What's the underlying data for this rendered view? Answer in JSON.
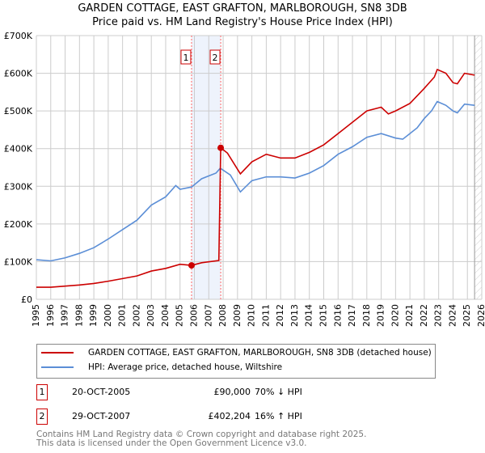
{
  "title": "GARDEN COTTAGE, EAST GRAFTON, MARLBOROUGH, SN8 3DB",
  "subtitle": "Price paid vs. HM Land Registry's House Price Index (HPI)",
  "chart_data": {
    "type": "line",
    "title": "GARDEN COTTAGE, EAST GRAFTON, MARLBOROUGH, SN8 3DB",
    "ylim": [
      0,
      700000
    ],
    "xlim": [
      1995,
      2026
    ],
    "yticks": [
      0,
      100000,
      200000,
      300000,
      400000,
      500000,
      600000,
      700000
    ],
    "ytick_labels": [
      "£0",
      "£100K",
      "£200K",
      "£300K",
      "£400K",
      "£500K",
      "£600K",
      "£700K"
    ],
    "xticks": [
      "1995",
      "1996",
      "1997",
      "1998",
      "1999",
      "2000",
      "2001",
      "2002",
      "2003",
      "2004",
      "2005",
      "2006",
      "2007",
      "2008",
      "2009",
      "2010",
      "2011",
      "2012",
      "2013",
      "2014",
      "2015",
      "2016",
      "2017",
      "2018",
      "2019",
      "2020",
      "2021",
      "2022",
      "2023",
      "2024",
      "2025",
      "2026"
    ],
    "grid": true,
    "shaded_range": [
      2005.8,
      2007.83
    ],
    "hatched_from": 2025.5,
    "series": [
      {
        "name": "GARDEN COTTAGE, EAST GRAFTON, MARLBOROUGH, SN8 3DB (detached house)",
        "color": "#cc0000",
        "x": [
          1995,
          1996,
          1997,
          1998,
          1999,
          2000,
          2001,
          2002,
          2003,
          2004,
          2005,
          2005.8,
          2006.5,
          2007.7,
          2007.83,
          2008.3,
          2009.2,
          2010,
          2011,
          2012,
          2013,
          2014,
          2015,
          2016,
          2017,
          2018,
          2019,
          2019.5,
          2020,
          2021,
          2022,
          2022.7,
          2022.9,
          2023.5,
          2024,
          2024.3,
          2024.8,
          2025.5
        ],
        "y": [
          32000,
          32000,
          35000,
          38000,
          42000,
          48000,
          55000,
          62000,
          75000,
          82000,
          93000,
          90000,
          97000,
          103000,
          402204,
          388000,
          333000,
          365000,
          385000,
          375000,
          375000,
          390000,
          410000,
          440000,
          470000,
          500000,
          510000,
          492000,
          500000,
          520000,
          560000,
          590000,
          610000,
          600000,
          575000,
          572000,
          600000,
          595000
        ]
      },
      {
        "name": "HPI: Average price, detached house, Wiltshire",
        "color": "#5b8ed6",
        "x": [
          1995,
          1996,
          1997,
          1998,
          1999,
          2000,
          2001,
          2002,
          2003,
          2004,
          2004.7,
          2005,
          2005.8,
          2006.5,
          2007.5,
          2007.8,
          2008.5,
          2009.2,
          2010,
          2011,
          2012,
          2013,
          2014,
          2015,
          2016,
          2017,
          2018,
          2019,
          2020,
          2020.5,
          2021,
          2021.5,
          2022,
          2022.5,
          2022.9,
          2023.5,
          2024,
          2024.3,
          2024.8,
          2025.5
        ],
        "y": [
          105000,
          102000,
          110000,
          122000,
          137000,
          160000,
          185000,
          210000,
          250000,
          272000,
          302000,
          292000,
          298000,
          320000,
          335000,
          348000,
          330000,
          285000,
          315000,
          325000,
          325000,
          322000,
          335000,
          355000,
          385000,
          405000,
          430000,
          440000,
          428000,
          425000,
          440000,
          455000,
          480000,
          500000,
          525000,
          515000,
          500000,
          495000,
          518000,
          515000
        ]
      }
    ],
    "markers": [
      {
        "label": "1",
        "x": 2005.8,
        "y": 90000
      },
      {
        "label": "2",
        "x": 2007.83,
        "y": 402204
      }
    ]
  },
  "legend": [
    {
      "label": "GARDEN COTTAGE, EAST GRAFTON, MARLBOROUGH, SN8 3DB (detached house)",
      "color": "#cc0000"
    },
    {
      "label": "HPI: Average price, detached house, Wiltshire",
      "color": "#5b8ed6"
    }
  ],
  "transactions": [
    {
      "num": "1",
      "date": "20-OCT-2005",
      "price": "£90,000",
      "hpi": "70% ↓ HPI"
    },
    {
      "num": "2",
      "date": "29-OCT-2007",
      "price": "£402,204",
      "hpi": "16% ↑ HPI"
    }
  ],
  "footer": [
    "Contains HM Land Registry data © Crown copyright and database right 2025.",
    "This data is licensed under the Open Government Licence v3.0."
  ]
}
